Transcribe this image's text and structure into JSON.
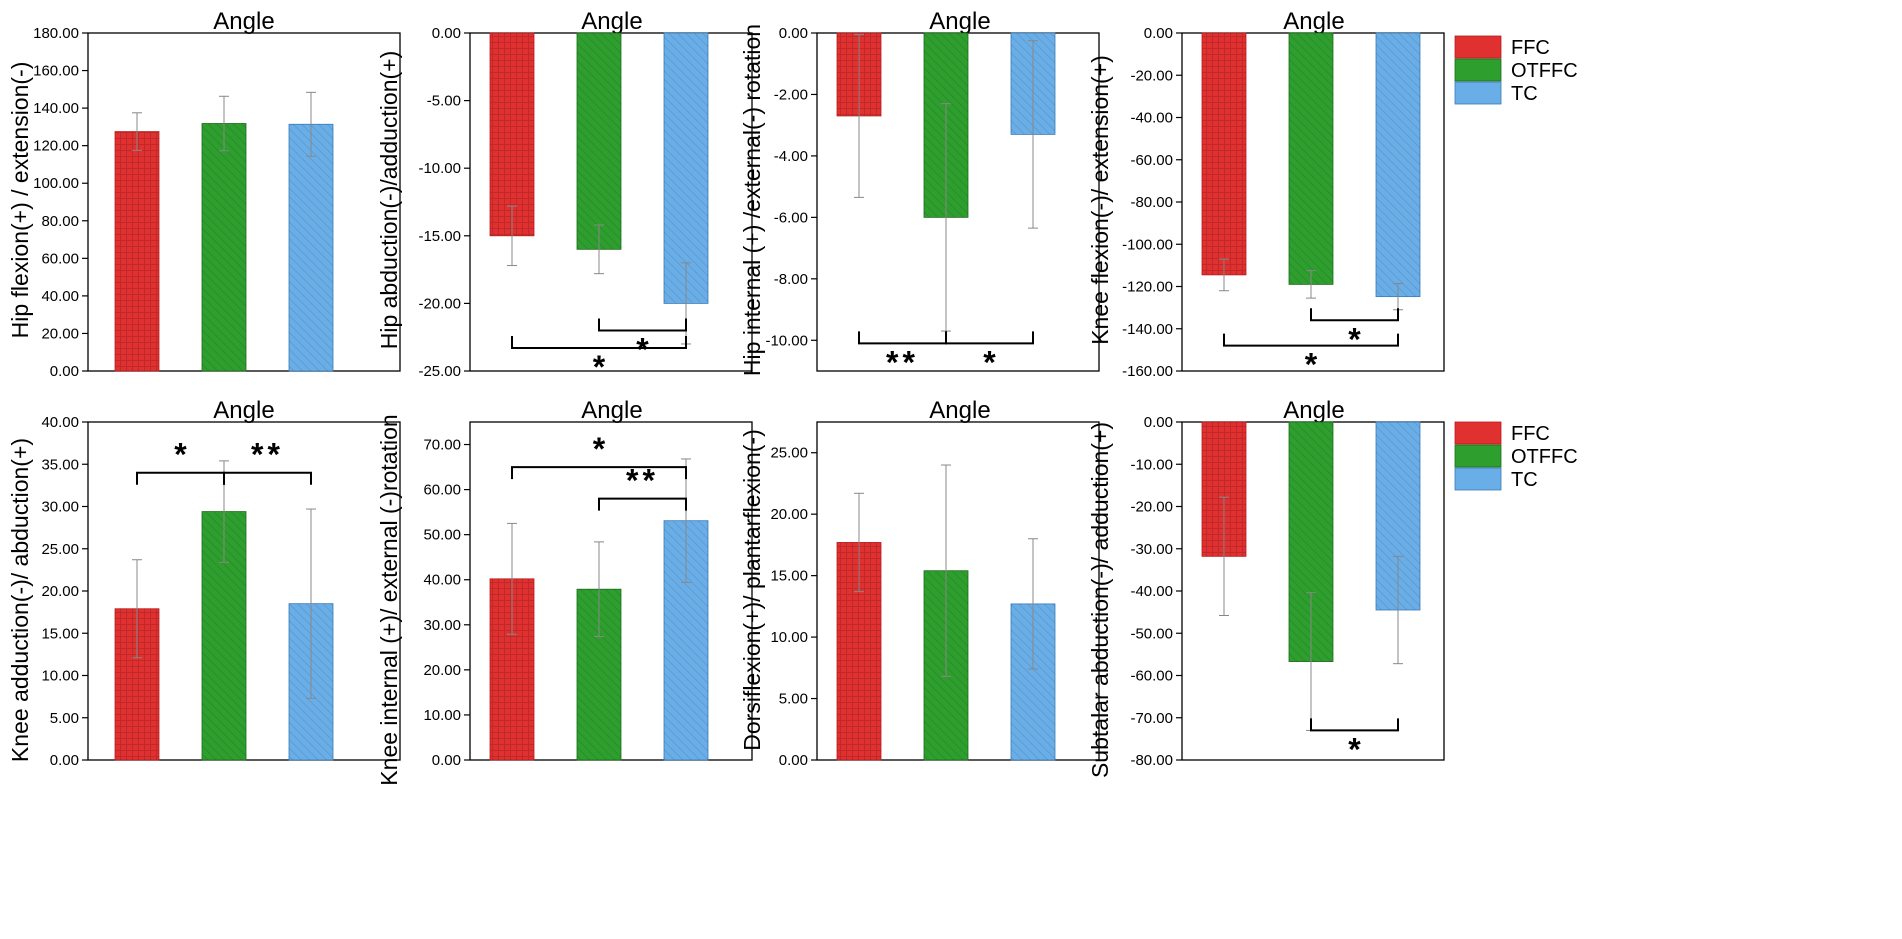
{
  "series": [
    {
      "name": "FFC",
      "color": "#e03030",
      "pattern": "grid"
    },
    {
      "name": "OTFFC",
      "color": "#2e9e2e",
      "pattern": "diag"
    },
    {
      "name": "TC",
      "color": "#6aaee8",
      "pattern": "diag"
    }
  ],
  "chart_data": [
    {
      "type": "bar",
      "title": "Angle",
      "ylabel": "Hip  flexion(+) / extension(-)",
      "ylim": [
        0,
        180
      ],
      "ticks": [
        "0.00",
        "20.00",
        "40.00",
        "60.00",
        "80.00",
        "100.00",
        "120.00",
        "140.00",
        "160.00",
        "180.00"
      ],
      "values": [
        127.5,
        131.8,
        131.4
      ],
      "errors": [
        10,
        14.5,
        17
      ],
      "significance": []
    },
    {
      "type": "bar",
      "title": "Angle",
      "ylabel": "Hip  abduction(-)/adduction(+)",
      "ylim": [
        -25,
        0
      ],
      "ticks": [
        "-25.00",
        "-20.00",
        "-15.00",
        "-10.00",
        "-5.00",
        "0.00"
      ],
      "values": [
        -15.0,
        -16.0,
        -20.0
      ],
      "errors": [
        2.2,
        1.8,
        3.0
      ],
      "significance": [
        {
          "from": 1,
          "to": 2,
          "y": -22.0,
          "label": "*"
        },
        {
          "from": 0,
          "to": 2,
          "y": -23.3,
          "label": "*"
        }
      ]
    },
    {
      "type": "bar",
      "title": "Angle",
      "ylabel": "Hip  internal (+) /external(-) rotation",
      "ylim": [
        -11,
        0
      ],
      "ticks": [
        "-10.00",
        "-8.00",
        "-6.00",
        "-4.00",
        "-2.00",
        "0.00"
      ],
      "values": [
        -2.7,
        -6.0,
        -3.3
      ],
      "errors": [
        2.65,
        3.7,
        3.05
      ],
      "significance": [
        {
          "from": 0,
          "to": 1,
          "y": -10.1,
          "label": "**"
        },
        {
          "from": 1,
          "to": 2,
          "y": -10.1,
          "label": "*"
        }
      ]
    },
    {
      "type": "bar",
      "title": "Angle",
      "ylabel": "Knee flexion(-)/ extension(+)",
      "ylim": [
        -160,
        0
      ],
      "ticks": [
        "-160.00",
        "-140.00",
        "-120.00",
        "-100.00",
        "-80.00",
        "-60.00",
        "-40.00",
        "-20.00",
        "0.00"
      ],
      "values": [
        -114.5,
        -119.0,
        -124.8
      ],
      "errors": [
        7.5,
        6.5,
        6.2
      ],
      "significance": [
        {
          "from": 1,
          "to": 2,
          "y": -136.0,
          "label": "*"
        },
        {
          "from": 0,
          "to": 2,
          "y": -148.0,
          "label": "*"
        }
      ]
    },
    {
      "type": "bar",
      "title": "Angle",
      "ylabel": "Knee  adduction(-)/ abduction(+)",
      "ylim": [
        0,
        40
      ],
      "ticks": [
        "0.00",
        "5.00",
        "10.00",
        "15.00",
        "20.00",
        "25.00",
        "30.00",
        "35.00",
        "40.00"
      ],
      "values": [
        17.9,
        29.4,
        18.5
      ],
      "errors": [
        5.8,
        6.0,
        11.2
      ],
      "significance": [
        {
          "from": 0,
          "to": 1,
          "y": 34.0,
          "label": "*"
        },
        {
          "from": 1,
          "to": 2,
          "y": 34.0,
          "label": "**"
        }
      ]
    },
    {
      "type": "bar",
      "title": "Angle",
      "ylabel": "Knee  internal (+)/ external (-)rotation",
      "ylim": [
        0,
        75
      ],
      "ticks": [
        "0.00",
        "10.00",
        "20.00",
        "30.00",
        "40.00",
        "50.00",
        "60.00",
        "70.00"
      ],
      "values": [
        40.2,
        37.9,
        53.1
      ],
      "errors": [
        12.3,
        10.5,
        13.7
      ],
      "significance": [
        {
          "from": 0,
          "to": 2,
          "y": 65.0,
          "label": "*"
        },
        {
          "from": 1,
          "to": 2,
          "y": 58.0,
          "label": "**"
        }
      ]
    },
    {
      "type": "bar",
      "title": "Angle",
      "ylabel": "Dorsiflexion(+)/ plantarflexion(-)",
      "ylim": [
        0,
        27.5
      ],
      "ticks": [
        "0.00",
        "5.00",
        "10.00",
        "15.00",
        "20.00",
        "25.00"
      ],
      "values": [
        17.7,
        15.4,
        12.7
      ],
      "errors": [
        4.0,
        8.6,
        5.3
      ],
      "significance": []
    },
    {
      "type": "bar",
      "title": "Angle",
      "ylabel": "Subtalar  abduction(-)/ adduction(+)",
      "ylim": [
        -80,
        0
      ],
      "ticks": [
        "-80.00",
        "-70.00",
        "-60.00",
        "-50.00",
        "-40.00",
        "-30.00",
        "-20.00",
        "-10.00",
        "0.00"
      ],
      "values": [
        -31.8,
        -56.7,
        -44.5
      ],
      "errors": [
        14.0,
        16.3,
        12.7
      ],
      "significance": [
        {
          "from": 1,
          "to": 2,
          "y": -73.0,
          "label": "*"
        }
      ]
    }
  ]
}
